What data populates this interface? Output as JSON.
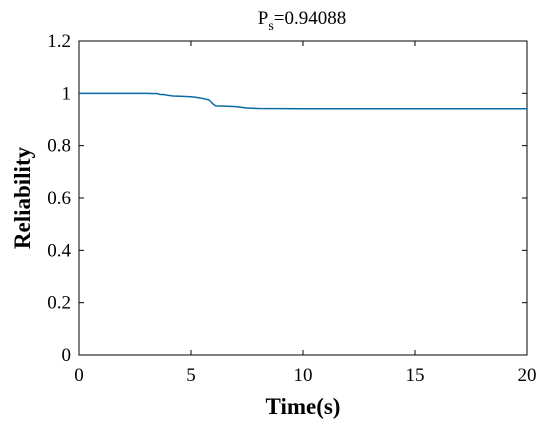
{
  "chart_data": {
    "type": "line",
    "title": {
      "main": "P",
      "subscript": "s",
      "value_text": "=0.94088"
    },
    "xlabel": "Time(s)",
    "ylabel": "Reliability",
    "xlim": [
      0,
      20
    ],
    "ylim": [
      0,
      1.2
    ],
    "xticks": [
      0,
      5,
      10,
      15,
      20
    ],
    "xtick_labels": [
      "0",
      "5",
      "10",
      "15",
      "20"
    ],
    "yticks": [
      0,
      0.2,
      0.4,
      0.6,
      0.8,
      1.0,
      1.2
    ],
    "ytick_labels": [
      "0",
      "0.2",
      "0.4",
      "0.6",
      "0.8",
      "1",
      "1.2"
    ],
    "grid": false,
    "series": [
      {
        "color": "#0a6aa1",
        "x": [
          0,
          0.5,
          1.0,
          1.5,
          2.0,
          2.5,
          3.0,
          3.5,
          3.6,
          3.8,
          4.0,
          4.2,
          4.5,
          5.0,
          5.2,
          5.5,
          5.8,
          6.0,
          6.1,
          6.5,
          7.0,
          7.5,
          8.0,
          9.0,
          10.0,
          11.0,
          12.0,
          13.0,
          14.0,
          15.0,
          16.0,
          17.0,
          18.0,
          19.0,
          20.0
        ],
        "y": [
          1.0,
          1.0,
          1.0,
          1.0,
          1.0,
          1.0,
          0.9998,
          0.999,
          0.996,
          0.995,
          0.992,
          0.99,
          0.989,
          0.987,
          0.985,
          0.981,
          0.975,
          0.958,
          0.952,
          0.951,
          0.949,
          0.944,
          0.942,
          0.9415,
          0.941,
          0.941,
          0.941,
          0.941,
          0.941,
          0.941,
          0.941,
          0.941,
          0.941,
          0.94088,
          0.94088
        ]
      }
    ],
    "colors": {
      "line": "#0a6aa1",
      "axes": "#000000",
      "background": "#ffffff"
    }
  }
}
